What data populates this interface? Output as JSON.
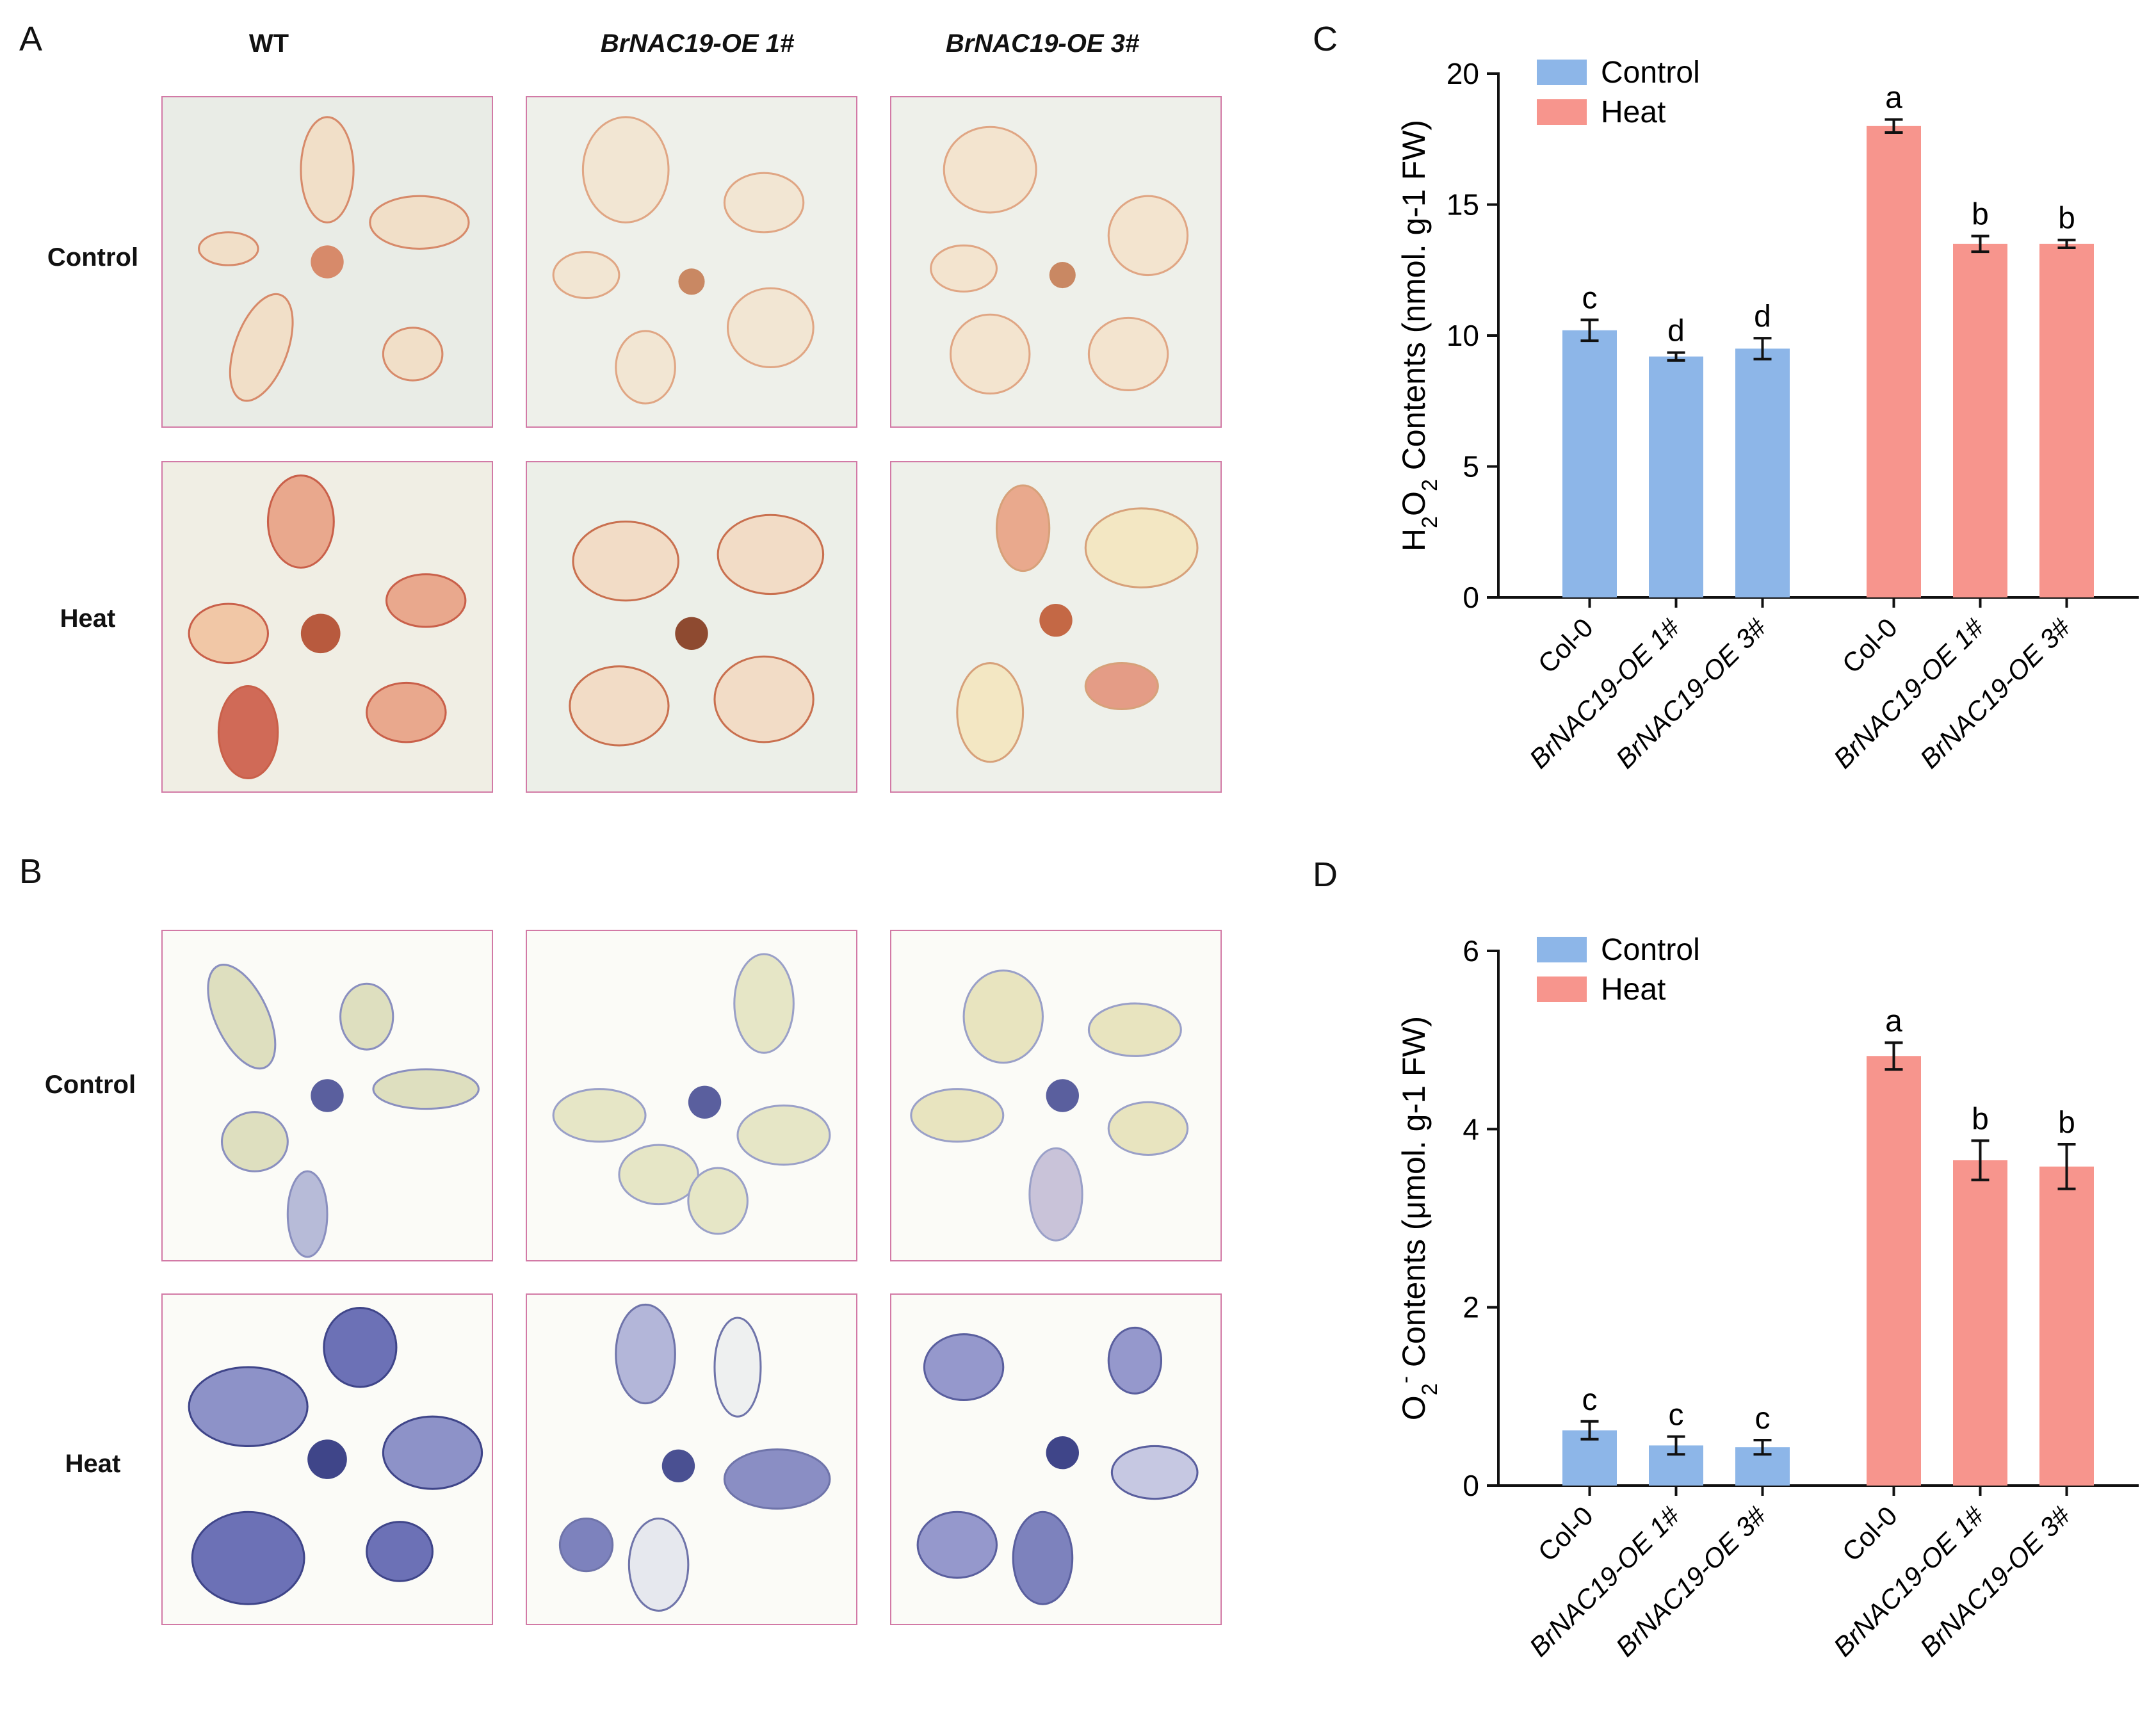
{
  "panels": {
    "a": "A",
    "b": "B",
    "c": "C",
    "d": "D"
  },
  "photo_grid": {
    "columns": [
      "WT",
      "BrNAC19-OE 1#",
      "BrNAC19-OE 3#"
    ],
    "rows_a": [
      "Control",
      "Heat"
    ],
    "rows_b": [
      "Control",
      "Heat"
    ]
  },
  "colors": {
    "control": "#8db6e8",
    "heat": "#f7958d",
    "photo_border": "#d27aa6",
    "dab_light": "#f1dfc8",
    "dab_stain": "#d78a6a",
    "nbt_light": "#dedfbf",
    "nbt_stain": "#6c71b6"
  },
  "chart_data": [
    {
      "type": "bar",
      "title": "",
      "ylabel_prefix": "H",
      "ylabel_sub1": "2",
      "ylabel_mid": "O",
      "ylabel_sub2": "2",
      "ylabel_suffix": " Contents (nmol. g-1 FW)",
      "categories": [
        "Col-0",
        "BrNAC19-OE 1#",
        "BrNAC19-OE 3#",
        "Col-0",
        "BrNAC19-OE 1#",
        "BrNAC19-OE 3#"
      ],
      "groups": [
        "Control",
        "Control",
        "Control",
        "Heat",
        "Heat",
        "Heat"
      ],
      "values": [
        10.2,
        9.2,
        9.5,
        18.0,
        13.5,
        13.5
      ],
      "errors": [
        0.4,
        0.15,
        0.4,
        0.25,
        0.3,
        0.15
      ],
      "letters": [
        "c",
        "d",
        "d",
        "a",
        "b",
        "b"
      ],
      "ylim": [
        0,
        20
      ],
      "yticks": [
        "0",
        "5",
        "10",
        "15",
        "20"
      ],
      "ytick_values": [
        0,
        5,
        10,
        15,
        20
      ],
      "legend": [
        "Control",
        "Heat"
      ]
    },
    {
      "type": "bar",
      "title": "",
      "ylabel_prefix": "O",
      "ylabel_sub1": "2",
      "ylabel_sup": "-",
      "ylabel_suffix": " Contents (μmol. g-1 FW)",
      "categories": [
        "Col-0",
        "BrNAC19-OE 1#",
        "BrNAC19-OE 3#",
        "Col-0",
        "BrNAC19-OE 1#",
        "BrNAC19-OE 3#"
      ],
      "groups": [
        "Control",
        "Control",
        "Control",
        "Heat",
        "Heat",
        "Heat"
      ],
      "values": [
        0.62,
        0.45,
        0.43,
        4.82,
        3.65,
        3.58
      ],
      "errors": [
        0.1,
        0.1,
        0.08,
        0.15,
        0.22,
        0.25
      ],
      "letters": [
        "c",
        "c",
        "c",
        "a",
        "b",
        "b"
      ],
      "ylim": [
        0,
        6
      ],
      "yticks": [
        "0",
        "2",
        "4",
        "6"
      ],
      "ytick_values": [
        0,
        2,
        4,
        6
      ],
      "legend": [
        "Control",
        "Heat"
      ]
    }
  ]
}
